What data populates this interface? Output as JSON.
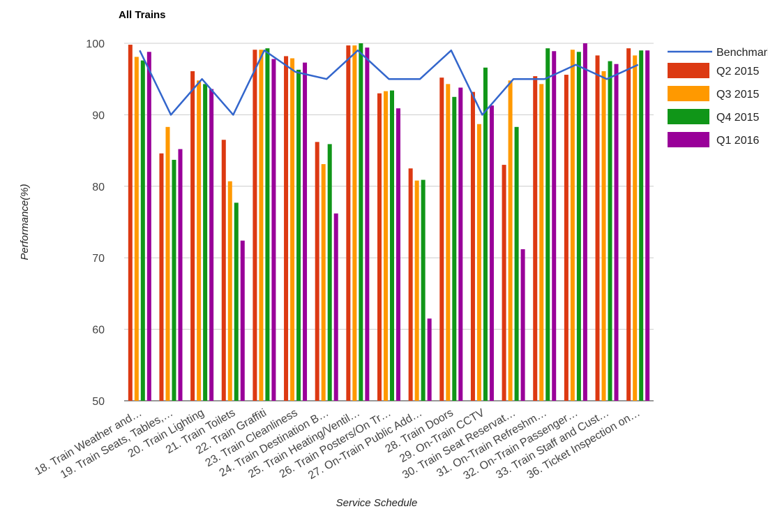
{
  "chart_data": {
    "type": "bar",
    "title": "All Trains",
    "xlabel": "Service Schedule",
    "ylabel": "Performance(%)",
    "ylim": [
      50,
      100
    ],
    "yticks": [
      "50",
      "60",
      "70",
      "80",
      "90",
      "100"
    ],
    "grid": true,
    "legend_position": "right",
    "categories": [
      "18. Train Weather and…",
      "19. Train Seats, Tables,…",
      "20. Train Lighting",
      "21. Train Toilets",
      "22. Train Graffiti",
      "23. Train Cleanliness",
      "24. Train Destination B…",
      "25. Train Heating/Ventil…",
      "26. Train Posters/On Tr…",
      "27. On-Train Public Add…",
      "28. Train Doors",
      "29. On-Train CCTV",
      "30. Train Seat Reservat…",
      "31. On-Train Refreshm…",
      "32. On-Train Passenger…",
      "33. Train Staff and Cust…",
      "36. Ticket Inspection on…"
    ],
    "line_series": {
      "name": "Benchmark",
      "color": "#3366cc",
      "values": [
        99,
        90,
        95,
        90,
        99,
        96,
        95,
        99,
        95,
        95,
        99,
        90,
        95,
        95,
        97,
        95,
        97
      ]
    },
    "series": [
      {
        "name": "Q2 2015",
        "color": "#dc3912",
        "values": [
          99.8,
          84.6,
          96.1,
          86.5,
          99.1,
          98.2,
          86.2,
          99.7,
          93.0,
          82.5,
          95.2,
          93.2,
          83.0,
          95.4,
          95.6,
          98.3,
          99.3
        ]
      },
      {
        "name": "Q3 2015",
        "color": "#ff9900",
        "values": [
          98.1,
          88.3,
          94.8,
          80.7,
          99.1,
          97.9,
          83.1,
          99.7,
          93.3,
          80.8,
          94.3,
          88.7,
          94.8,
          94.3,
          99.1,
          96.1,
          98.3
        ]
      },
      {
        "name": "Q4 2015",
        "color": "#109618",
        "values": [
          97.6,
          83.7,
          94.3,
          77.7,
          99.3,
          96.3,
          85.9,
          100.0,
          93.4,
          80.9,
          92.5,
          96.6,
          88.3,
          99.3,
          98.8,
          97.5,
          99.0
        ]
      },
      {
        "name": "Q1 2016",
        "color": "#990099",
        "values": [
          98.8,
          85.2,
          93.6,
          72.4,
          97.8,
          97.3,
          76.2,
          99.4,
          90.9,
          61.5,
          93.8,
          91.3,
          71.2,
          98.9,
          100.0,
          97.1,
          99.0
        ]
      }
    ]
  }
}
